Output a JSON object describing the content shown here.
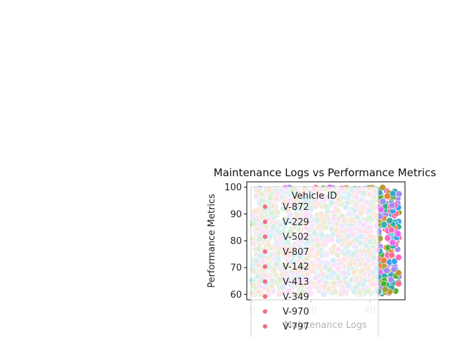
{
  "chart_data": {
    "type": "scatter",
    "title": "Maintenance Logs vs Performance Metrics",
    "xlabel": "Maintenance Logs",
    "ylabel": "Performance Metrics",
    "xlim": [
      -2,
      52
    ],
    "ylim": [
      58,
      102
    ],
    "xticks": [
      0,
      20,
      40
    ],
    "yticks": [
      60,
      70,
      80,
      90,
      100
    ],
    "legend": {
      "title": "Vehicle ID",
      "placement": "upper-left",
      "entries": [
        "V-872",
        "V-229",
        "V-502",
        "V-807",
        "V-142",
        "V-413",
        "V-349",
        "V-970",
        "V-797"
      ]
    },
    "marker_color": "#f07080",
    "palette": [
      "#f77189",
      "#e98132",
      "#bb9832",
      "#97a431",
      "#50b131",
      "#34ae91",
      "#36ada4",
      "#38aabf",
      "#3ba3ec",
      "#a48cf4",
      "#e866f4",
      "#f668c2"
    ],
    "series_x_range": [
      0,
      50
    ],
    "series_y_range": [
      60,
      100
    ]
  }
}
